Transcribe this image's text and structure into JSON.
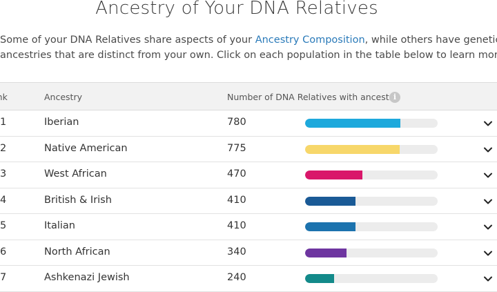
{
  "page": {
    "title": "Ancestry of Your DNA Relatives",
    "intro_line1_prefix": "Some of your DNA Relatives share aspects of your ",
    "intro_link": "Ancestry Composition",
    "intro_line1_suffix": ", while others have genetic",
    "intro_line2": "ancestries that are distinct from your own. Click on each population in the table below to learn more."
  },
  "table": {
    "headers": {
      "rank": "ank",
      "ancestry": "Ancestry",
      "count": "Number of DNA Relatives with ancestry"
    },
    "max_count": 780,
    "rows": [
      {
        "rank": "1",
        "ancestry": "Iberian",
        "count": "780",
        "value": 780,
        "color": "#1ea9dc"
      },
      {
        "rank": "2",
        "ancestry": "Native American",
        "count": "775",
        "value": 775,
        "color": "#f7d76a"
      },
      {
        "rank": "3",
        "ancestry": "West African",
        "count": "470",
        "value": 470,
        "color": "#d9176a"
      },
      {
        "rank": "4",
        "ancestry": "British & Irish",
        "count": "410",
        "value": 410,
        "color": "#1a5a96"
      },
      {
        "rank": "5",
        "ancestry": "Italian",
        "count": "410",
        "value": 410,
        "color": "#1c73ae"
      },
      {
        "rank": "6",
        "ancestry": "North African",
        "count": "340",
        "value": 340,
        "color": "#6e35a0"
      },
      {
        "rank": "7",
        "ancestry": "Ashkenazi Jewish",
        "count": "240",
        "value": 240,
        "color": "#138a8a"
      }
    ]
  },
  "icons": {
    "info": "info-icon",
    "row_toggle": "chevron-down-icon"
  }
}
